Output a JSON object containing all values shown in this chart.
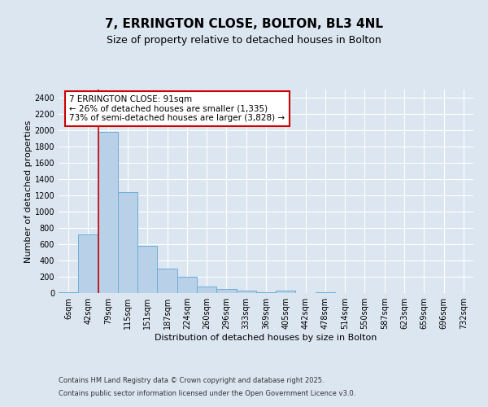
{
  "title_line1": "7, ERRINGTON CLOSE, BOLTON, BL3 4NL",
  "title_line2": "Size of property relative to detached houses in Bolton",
  "xlabel": "Distribution of detached houses by size in Bolton",
  "ylabel": "Number of detached properties",
  "footnote1": "Contains HM Land Registry data © Crown copyright and database right 2025.",
  "footnote2": "Contains public sector information licensed under the Open Government Licence v3.0.",
  "annotation_line1": "7 ERRINGTON CLOSE: 91sqm",
  "annotation_line2": "← 26% of detached houses are smaller (1,335)",
  "annotation_line3": "73% of semi-detached houses are larger (3,828) →",
  "bar_labels": [
    "6sqm",
    "42sqm",
    "79sqm",
    "115sqm",
    "151sqm",
    "187sqm",
    "224sqm",
    "260sqm",
    "296sqm",
    "333sqm",
    "369sqm",
    "405sqm",
    "442sqm",
    "478sqm",
    "514sqm",
    "550sqm",
    "587sqm",
    "623sqm",
    "659sqm",
    "696sqm",
    "732sqm"
  ],
  "bar_values": [
    10,
    720,
    1980,
    1240,
    580,
    300,
    205,
    80,
    50,
    30,
    10,
    30,
    5,
    10,
    5,
    3,
    3,
    2,
    2,
    2,
    2
  ],
  "bar_color": "#b8d0e8",
  "bar_edge_color": "#6baed6",
  "background_color": "#dce6f1",
  "plot_bg_color": "#dce6f1",
  "ylim": [
    0,
    2500
  ],
  "yticks": [
    0,
    200,
    400,
    600,
    800,
    1000,
    1200,
    1400,
    1600,
    1800,
    2000,
    2200,
    2400
  ],
  "vline_color": "#cc0000",
  "annotation_box_color": "#cc0000",
  "title_fontsize": 11,
  "subtitle_fontsize": 9,
  "axis_label_fontsize": 8,
  "tick_fontsize": 7,
  "annotation_fontsize": 7.5
}
